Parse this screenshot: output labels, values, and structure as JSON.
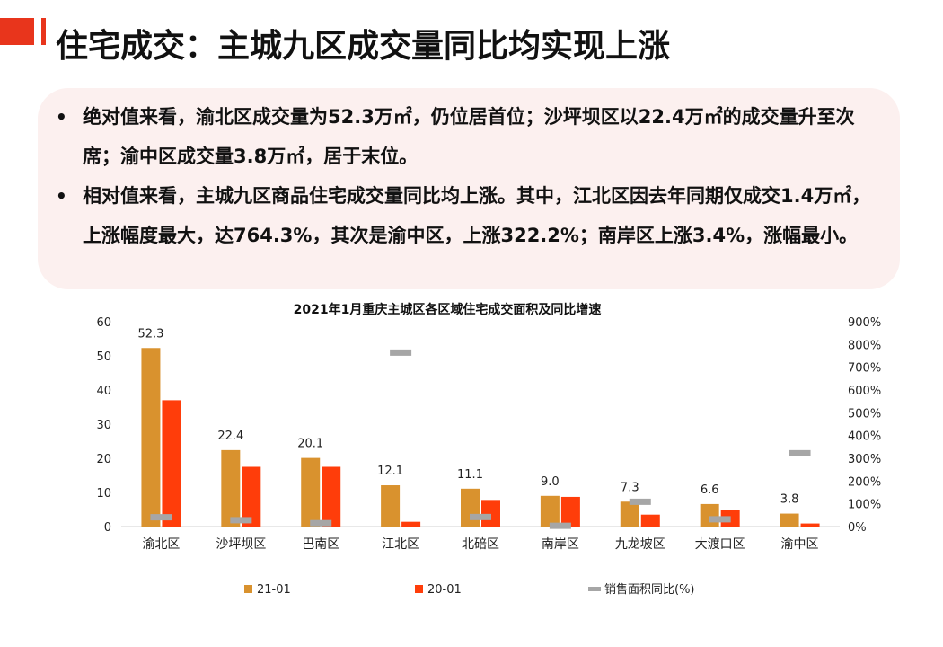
{
  "header": {
    "title": "住宅成交：主城九区成交量同比均实现上涨"
  },
  "summary": {
    "bullet_glyph": "•",
    "points": [
      "绝对值来看，渝北区成交量为52.3万㎡，仍位居首位；沙坪坝区以22.4万㎡的成交量升至次席；渝中区成交量3.8万㎡，居于末位。",
      "相对值来看，主城九区商品住宅成交量同比均上涨。其中，江北区因去年同期仅成交1.4万㎡，上涨幅度最大，达764.3%，其次是渝中区，上涨322.2%；南岸区上涨3.4%，涨幅最小。"
    ]
  },
  "colors": {
    "accent": "#e8351c",
    "bar_21": "#d9922e",
    "bar_20": "#ff3d0a",
    "yoy": "#a6a6a6",
    "box_bg": "#fcf0ef"
  },
  "chart_data": {
    "type": "bar",
    "title": "2021年1月重庆主城区各区域住宅成交面积及同比增速",
    "categories": [
      "渝北区",
      "沙坪坝区",
      "巴南区",
      "江北区",
      "北碚区",
      "南岸区",
      "九龙坡区",
      "大渡口区",
      "渝中区"
    ],
    "series": [
      {
        "name": "21-01",
        "values": [
          52.3,
          22.4,
          20.1,
          12.1,
          11.1,
          9.0,
          7.3,
          6.6,
          3.8
        ],
        "axis": "left",
        "labels": [
          "52.3",
          "22.4",
          "20.1",
          "12.1",
          "11.1",
          "9.0",
          "7.3",
          "6.6",
          "3.8"
        ]
      },
      {
        "name": "20-01",
        "values": [
          37.0,
          17.5,
          17.5,
          1.4,
          7.8,
          8.7,
          3.5,
          5.0,
          0.9
        ],
        "axis": "left"
      },
      {
        "name": "销售面积同比(%)",
        "values": [
          41,
          28,
          15,
          764.3,
          42,
          3.4,
          109,
          32,
          322.2
        ],
        "axis": "right",
        "marker": "dash"
      }
    ],
    "ylim_left": [
      0,
      60
    ],
    "yticks_left": [
      "0",
      "10",
      "20",
      "30",
      "40",
      "50",
      "60"
    ],
    "ylim_right": [
      0,
      900
    ],
    "yticks_right": [
      "0%",
      "100%",
      "200%",
      "300%",
      "400%",
      "500%",
      "600%",
      "700%",
      "800%",
      "900%"
    ],
    "grid": false,
    "legend": "bottom"
  }
}
